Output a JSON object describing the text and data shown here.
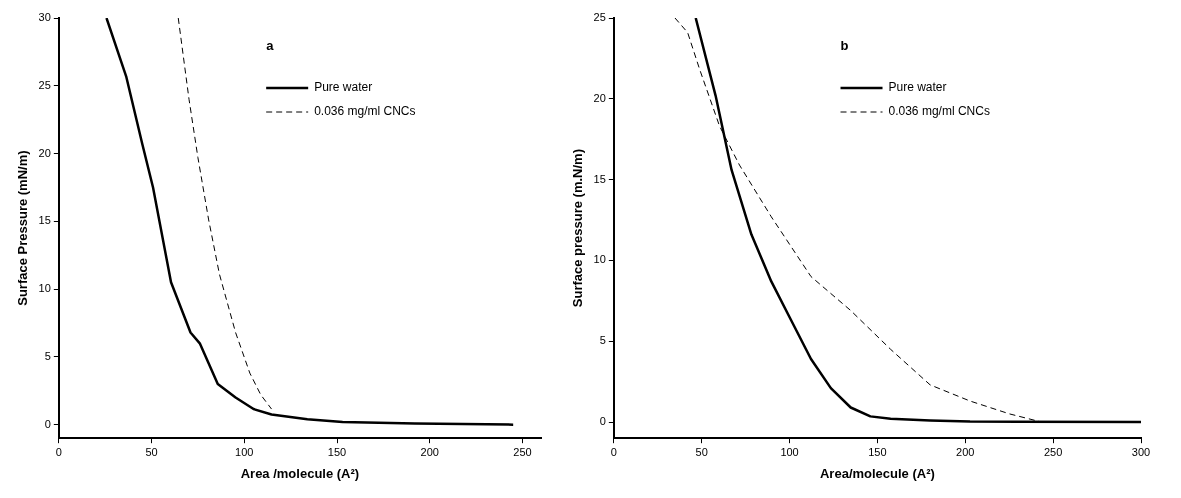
{
  "chart_data": [
    {
      "type": "line",
      "title": "a",
      "xlabel": "Area /molecule (A²)",
      "ylabel": "Surface Pressure (mN/m)",
      "xlim": [
        0,
        260
      ],
      "ylim": [
        -1,
        30
      ],
      "xticks": [
        0,
        50,
        100,
        150,
        200,
        250
      ],
      "yticks": [
        0,
        5,
        10,
        15,
        20,
        25,
        30
      ],
      "grid": false,
      "legend": "top right",
      "marker": "none",
      "series": [
        {
          "name": "Pure water",
          "color": "#000000",
          "line_style": "solid",
          "x": [
            25.7,
            36.3,
            45,
            50.8,
            60.5,
            71,
            76,
            85.7,
            95.3,
            105,
            114.7,
            134,
            153,
            192,
            245
          ],
          "values": [
            30,
            25.7,
            20.7,
            17.5,
            10.5,
            6.8,
            6,
            3,
            2,
            1.15,
            0.75,
            0.4,
            0.2,
            0.08,
            0
          ]
        },
        {
          "name": "0.036 mg/ml CNCs",
          "color": "#000000",
          "line_style": "dashed",
          "x": [
            64.4,
            70.2,
            75,
            80.8,
            86.6,
            95.3,
            103,
            108.9,
            114.7
          ],
          "values": [
            30,
            24,
            19.7,
            15.1,
            11.1,
            6.8,
            3.8,
            2.2,
            1.15
          ]
        }
      ]
    },
    {
      "type": "line",
      "title": "b",
      "xlabel": "Area/molecule (A²)",
      "ylabel": "Surface pressure (m.N/m)",
      "xlim": [
        0,
        300
      ],
      "ylim": [
        -1,
        25
      ],
      "xticks": [
        0,
        50,
        100,
        150,
        200,
        250,
        300
      ],
      "yticks": [
        0,
        5,
        10,
        15,
        20,
        25
      ],
      "grid": false,
      "legend": "top right",
      "marker": "none",
      "series": [
        {
          "name": "Pure water",
          "color": "#000000",
          "line_style": "solid",
          "x": [
            46.6,
            57.9,
            67,
            78.3,
            89.6,
            100.9,
            112.2,
            123.5,
            134.8,
            146,
            157.5,
            180,
            202.7,
            300
          ],
          "values": [
            25,
            20.2,
            15.6,
            11.6,
            8.7,
            6.3,
            3.9,
            2.1,
            0.9,
            0.35,
            0.2,
            0.1,
            0.03,
            0
          ]
        },
        {
          "name": "0.036 mg/ml CNCs",
          "color": "#000000",
          "line_style": "dashed",
          "x": [
            34.8,
            42,
            48.9,
            60.2,
            71.5,
            89.6,
            112.2,
            134.8,
            157.5,
            180,
            202.7,
            225.3,
            243.4
          ],
          "values": [
            25,
            24.1,
            21.8,
            18.3,
            15.9,
            12.7,
            9,
            6.9,
            4.5,
            2.3,
            1.3,
            0.5,
            0
          ]
        }
      ]
    }
  ]
}
